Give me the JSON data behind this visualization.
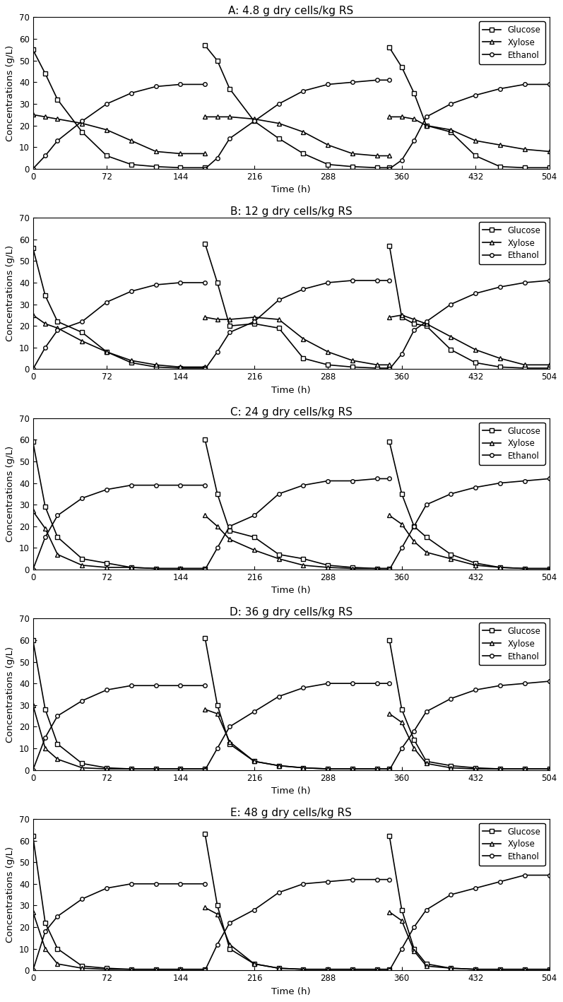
{
  "panels": [
    {
      "title": "A: 4.8 g dry cells/kg RS",
      "cycles": [
        {
          "glucose_x": [
            0,
            12,
            24,
            48,
            72,
            96,
            120,
            144,
            168
          ],
          "glucose_y": [
            55,
            44,
            32,
            17,
            6,
            2,
            1,
            0.5,
            0.5
          ],
          "xylose_x": [
            0,
            12,
            24,
            48,
            72,
            96,
            120,
            144,
            168
          ],
          "xylose_y": [
            25,
            24,
            23,
            21,
            18,
            13,
            8,
            7,
            7
          ],
          "ethanol_x": [
            0,
            12,
            24,
            48,
            72,
            96,
            120,
            144,
            168
          ],
          "ethanol_y": [
            0,
            6,
            13,
            22,
            30,
            35,
            38,
            39,
            39
          ]
        },
        {
          "glucose_x": [
            168,
            180,
            192,
            216,
            240,
            264,
            288,
            312,
            336,
            348
          ],
          "glucose_y": [
            57,
            50,
            37,
            22,
            14,
            7,
            2,
            1,
            0.5,
            0.5
          ],
          "xylose_x": [
            168,
            180,
            192,
            216,
            240,
            264,
            288,
            312,
            336,
            348
          ],
          "xylose_y": [
            24,
            24,
            24,
            23,
            21,
            17,
            11,
            7,
            6,
            6
          ],
          "ethanol_x": [
            168,
            180,
            192,
            216,
            240,
            264,
            288,
            312,
            336,
            348
          ],
          "ethanol_y": [
            0,
            5,
            14,
            22,
            30,
            36,
            39,
            40,
            41,
            41
          ]
        },
        {
          "glucose_x": [
            348,
            360,
            372,
            384,
            408,
            432,
            456,
            480,
            504
          ],
          "glucose_y": [
            56,
            47,
            35,
            20,
            17,
            6,
            1,
            0.5,
            0.5
          ],
          "xylose_x": [
            348,
            360,
            372,
            384,
            408,
            432,
            456,
            480,
            504
          ],
          "xylose_y": [
            24,
            24,
            23,
            20,
            18,
            13,
            11,
            9,
            8
          ],
          "ethanol_x": [
            348,
            360,
            372,
            384,
            408,
            432,
            456,
            480,
            504
          ],
          "ethanol_y": [
            0,
            4,
            13,
            24,
            30,
            34,
            37,
            39,
            39
          ]
        }
      ]
    },
    {
      "title": "B: 12 g dry cells/kg RS",
      "cycles": [
        {
          "glucose_x": [
            0,
            12,
            24,
            48,
            72,
            96,
            120,
            144,
            168
          ],
          "glucose_y": [
            56,
            34,
            22,
            17,
            8,
            3,
            1,
            0.5,
            0.5
          ],
          "xylose_x": [
            0,
            12,
            24,
            48,
            72,
            96,
            120,
            144,
            168
          ],
          "xylose_y": [
            25,
            21,
            19,
            13,
            8,
            4,
            2,
            1,
            1
          ],
          "ethanol_x": [
            0,
            12,
            24,
            48,
            72,
            96,
            120,
            144,
            168
          ],
          "ethanol_y": [
            0,
            10,
            18,
            22,
            31,
            36,
            39,
            40,
            40
          ]
        },
        {
          "glucose_x": [
            168,
            180,
            192,
            216,
            240,
            264,
            288,
            312,
            336,
            348
          ],
          "glucose_y": [
            58,
            40,
            20,
            21,
            19,
            5,
            2,
            1,
            0.5,
            0.5
          ],
          "xylose_x": [
            168,
            180,
            192,
            216,
            240,
            264,
            288,
            312,
            336,
            348
          ],
          "xylose_y": [
            24,
            23,
            23,
            24,
            23,
            14,
            8,
            4,
            2,
            2
          ],
          "ethanol_x": [
            168,
            180,
            192,
            216,
            240,
            264,
            288,
            312,
            336,
            348
          ],
          "ethanol_y": [
            0,
            8,
            17,
            22,
            32,
            37,
            40,
            41,
            41,
            41
          ]
        },
        {
          "glucose_x": [
            348,
            360,
            372,
            384,
            408,
            432,
            456,
            480,
            504
          ],
          "glucose_y": [
            57,
            24,
            21,
            20,
            9,
            3,
            1,
            0.5,
            0.5
          ],
          "xylose_x": [
            348,
            360,
            372,
            384,
            408,
            432,
            456,
            480,
            504
          ],
          "xylose_y": [
            24,
            25,
            23,
            21,
            15,
            9,
            5,
            2,
            2
          ],
          "ethanol_x": [
            348,
            360,
            372,
            384,
            408,
            432,
            456,
            480,
            504
          ],
          "ethanol_y": [
            0,
            7,
            18,
            22,
            30,
            35,
            38,
            40,
            41
          ]
        }
      ]
    },
    {
      "title": "C: 24 g dry cells/kg RS",
      "cycles": [
        {
          "glucose_x": [
            0,
            12,
            24,
            48,
            72,
            96,
            120,
            144,
            168
          ],
          "glucose_y": [
            59,
            29,
            15,
            5,
            3,
            1,
            0.5,
            0.5,
            0.5
          ],
          "xylose_x": [
            0,
            12,
            24,
            48,
            72,
            96,
            120,
            144,
            168
          ],
          "xylose_y": [
            27,
            19,
            7,
            2,
            1,
            1,
            0.5,
            0.5,
            0.5
          ],
          "ethanol_x": [
            0,
            12,
            24,
            48,
            72,
            96,
            120,
            144,
            168
          ],
          "ethanol_y": [
            0,
            15,
            25,
            33,
            37,
            39,
            39,
            39,
            39
          ]
        },
        {
          "glucose_x": [
            168,
            180,
            192,
            216,
            240,
            264,
            288,
            312,
            336,
            348
          ],
          "glucose_y": [
            60,
            35,
            18,
            15,
            7,
            5,
            2,
            1,
            0.5,
            0.5
          ],
          "xylose_x": [
            168,
            180,
            192,
            216,
            240,
            264,
            288,
            312,
            336,
            348
          ],
          "xylose_y": [
            25,
            20,
            14,
            9,
            5,
            2,
            1,
            0.5,
            0.5,
            0.5
          ],
          "ethanol_x": [
            168,
            180,
            192,
            216,
            240,
            264,
            288,
            312,
            336,
            348
          ],
          "ethanol_y": [
            0,
            10,
            20,
            25,
            35,
            39,
            41,
            41,
            42,
            42
          ]
        },
        {
          "glucose_x": [
            348,
            360,
            372,
            384,
            408,
            432,
            456,
            480,
            504
          ],
          "glucose_y": [
            59,
            35,
            20,
            15,
            7,
            3,
            1,
            0.5,
            0.5
          ],
          "xylose_x": [
            348,
            360,
            372,
            384,
            408,
            432,
            456,
            480,
            504
          ],
          "xylose_y": [
            25,
            21,
            13,
            8,
            5,
            2,
            1,
            0.5,
            0.5
          ],
          "ethanol_x": [
            348,
            360,
            372,
            384,
            408,
            432,
            456,
            480,
            504
          ],
          "ethanol_y": [
            0,
            10,
            20,
            30,
            35,
            38,
            40,
            41,
            42
          ]
        }
      ]
    },
    {
      "title": "D: 36 g dry cells/kg RS",
      "cycles": [
        {
          "glucose_x": [
            0,
            12,
            24,
            48,
            72,
            96,
            120,
            144,
            168
          ],
          "glucose_y": [
            60,
            28,
            12,
            3,
            1,
            0.5,
            0.5,
            0.5,
            0.5
          ],
          "xylose_x": [
            0,
            12,
            24,
            48,
            72,
            96,
            120,
            144,
            168
          ],
          "xylose_y": [
            30,
            10,
            5,
            1,
            0.5,
            0.5,
            0.5,
            0.5,
            0.5
          ],
          "ethanol_x": [
            0,
            12,
            24,
            48,
            72,
            96,
            120,
            144,
            168
          ],
          "ethanol_y": [
            0,
            15,
            25,
            32,
            37,
            39,
            39,
            39,
            39
          ]
        },
        {
          "glucose_x": [
            168,
            180,
            192,
            216,
            240,
            264,
            288,
            312,
            336,
            348
          ],
          "glucose_y": [
            61,
            30,
            12,
            4,
            2,
            1,
            0.5,
            0.5,
            0.5,
            0.5
          ],
          "xylose_x": [
            168,
            180,
            192,
            216,
            240,
            264,
            288,
            312,
            336,
            348
          ],
          "xylose_y": [
            28,
            26,
            13,
            4,
            2,
            1,
            0.5,
            0.5,
            0.5,
            0.5
          ],
          "ethanol_x": [
            168,
            180,
            192,
            216,
            240,
            264,
            288,
            312,
            336,
            348
          ],
          "ethanol_y": [
            0,
            10,
            20,
            27,
            34,
            38,
            40,
            40,
            40,
            40
          ]
        },
        {
          "glucose_x": [
            348,
            360,
            372,
            384,
            408,
            432,
            456,
            480,
            504
          ],
          "glucose_y": [
            60,
            28,
            14,
            4,
            2,
            1,
            0.5,
            0.5,
            0.5
          ],
          "xylose_x": [
            348,
            360,
            372,
            384,
            408,
            432,
            456,
            480,
            504
          ],
          "xylose_y": [
            26,
            22,
            10,
            3,
            1,
            0.5,
            0.5,
            0.5,
            0.5
          ],
          "ethanol_x": [
            348,
            360,
            372,
            384,
            408,
            432,
            456,
            480,
            504
          ],
          "ethanol_y": [
            0,
            10,
            18,
            27,
            33,
            37,
            39,
            40,
            41
          ]
        }
      ]
    },
    {
      "title": "E: 48 g dry cells/kg RS",
      "cycles": [
        {
          "glucose_x": [
            0,
            12,
            24,
            48,
            72,
            96,
            120,
            144,
            168
          ],
          "glucose_y": [
            62,
            22,
            10,
            2,
            1,
            0.5,
            0.5,
            0.5,
            0.5
          ],
          "xylose_x": [
            0,
            12,
            24,
            48,
            72,
            96,
            120,
            144,
            168
          ],
          "xylose_y": [
            27,
            10,
            3,
            1,
            0.5,
            0.5,
            0.5,
            0.5,
            0.5
          ],
          "ethanol_x": [
            0,
            12,
            24,
            48,
            72,
            96,
            120,
            144,
            168
          ],
          "ethanol_y": [
            0,
            18,
            25,
            33,
            38,
            40,
            40,
            40,
            40
          ]
        },
        {
          "glucose_x": [
            168,
            180,
            192,
            216,
            240,
            264,
            288,
            312,
            336,
            348
          ],
          "glucose_y": [
            63,
            30,
            10,
            3,
            1,
            0.5,
            0.5,
            0.5,
            0.5,
            0.5
          ],
          "xylose_x": [
            168,
            180,
            192,
            216,
            240,
            264,
            288,
            312,
            336,
            348
          ],
          "xylose_y": [
            29,
            26,
            12,
            3,
            1,
            0.5,
            0.5,
            0.5,
            0.5,
            0.5
          ],
          "ethanol_x": [
            168,
            180,
            192,
            216,
            240,
            264,
            288,
            312,
            336,
            348
          ],
          "ethanol_y": [
            0,
            12,
            22,
            28,
            36,
            40,
            41,
            42,
            42,
            42
          ]
        },
        {
          "glucose_x": [
            348,
            360,
            372,
            384,
            408,
            432,
            456,
            480,
            504
          ],
          "glucose_y": [
            62,
            28,
            10,
            3,
            1,
            0.5,
            0.5,
            0.5,
            0.5
          ],
          "xylose_x": [
            348,
            360,
            372,
            384,
            408,
            432,
            456,
            480,
            504
          ],
          "xylose_y": [
            27,
            23,
            9,
            2,
            1,
            0.5,
            0.5,
            0.5,
            0.5
          ],
          "ethanol_x": [
            348,
            360,
            372,
            384,
            408,
            432,
            456,
            480,
            504
          ],
          "ethanol_y": [
            0,
            10,
            20,
            28,
            35,
            38,
            41,
            44,
            44
          ]
        }
      ]
    }
  ],
  "ylim": [
    0,
    70
  ],
  "xlim": [
    0,
    504
  ],
  "xticks": [
    0,
    72,
    144,
    216,
    288,
    360,
    432,
    504
  ],
  "yticks": [
    0,
    10,
    20,
    30,
    40,
    50,
    60,
    70
  ],
  "xlabel": "Time (h)",
  "ylabel": "Concentrations (g/L)",
  "glucose_marker": "s",
  "xylose_marker": "^",
  "ethanol_marker": "o",
  "line_color": "#000000",
  "marker_size": 4,
  "line_width": 1.2
}
